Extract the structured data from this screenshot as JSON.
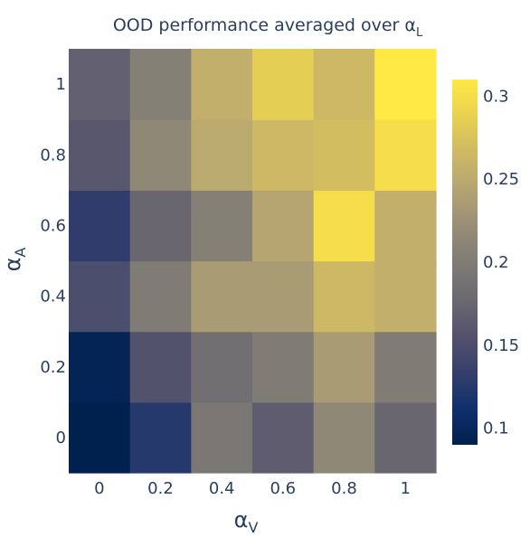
{
  "chart_data": {
    "type": "heatmap",
    "title": "OOD performance averaged over α",
    "title_subscript": "L",
    "xlabel": "α",
    "xlabel_subscript": "V",
    "ylabel": "α",
    "ylabel_subscript": "A",
    "x": [
      "0",
      "0.2",
      "0.4",
      "0.6",
      "0.8",
      "1"
    ],
    "y": [
      "0",
      "0.2",
      "0.4",
      "0.6",
      "0.8",
      "1"
    ],
    "z": [
      [
        0.085,
        0.125,
        0.195,
        0.165,
        0.215,
        0.175
      ],
      [
        0.095,
        0.155,
        0.185,
        0.2,
        0.235,
        0.2
      ],
      [
        0.15,
        0.2,
        0.235,
        0.235,
        0.265,
        0.255
      ],
      [
        0.13,
        0.175,
        0.205,
        0.245,
        0.3,
        0.255
      ],
      [
        0.16,
        0.215,
        0.25,
        0.265,
        0.27,
        0.3
      ],
      [
        0.17,
        0.205,
        0.255,
        0.285,
        0.265,
        0.32
      ]
    ],
    "zmin": 0.09,
    "zmax": 0.31,
    "colorscale": "cividis",
    "colorbar_ticks": [
      "0.1",
      "0.15",
      "0.2",
      "0.25",
      "0.3"
    ],
    "colorbar_tick_values": [
      0.1,
      0.15,
      0.2,
      0.25,
      0.3
    ]
  }
}
